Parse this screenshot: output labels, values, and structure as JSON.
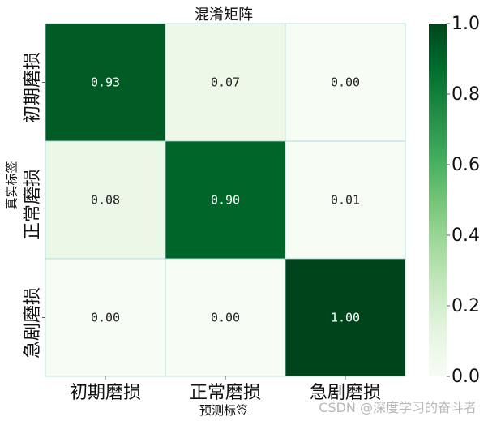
{
  "chart_data": {
    "type": "heatmap",
    "title": "混淆矩阵",
    "xlabel": "预测标签",
    "ylabel": "真实标签",
    "x_categories": [
      "初期磨损",
      "正常磨损",
      "急剧磨损"
    ],
    "y_categories": [
      "初期磨损",
      "正常磨损",
      "急剧磨损"
    ],
    "values": [
      [
        0.93,
        0.07,
        0.0
      ],
      [
        0.08,
        0.9,
        0.01
      ],
      [
        0.0,
        0.0,
        1.0
      ]
    ],
    "value_labels": [
      [
        "0.93",
        "0.07",
        "0.00"
      ],
      [
        "0.08",
        "0.90",
        "0.01"
      ],
      [
        "0.00",
        "0.00",
        "1.00"
      ]
    ],
    "colormap": "Greens",
    "vmin": 0.0,
    "vmax": 1.0,
    "colorbar_ticks": [
      "0.0",
      "0.2",
      "0.4",
      "0.6",
      "0.8",
      "1.0"
    ],
    "grid": true,
    "grid_color": "#a8d8d8"
  },
  "watermark": "CSDN @深度学习的奋斗者"
}
